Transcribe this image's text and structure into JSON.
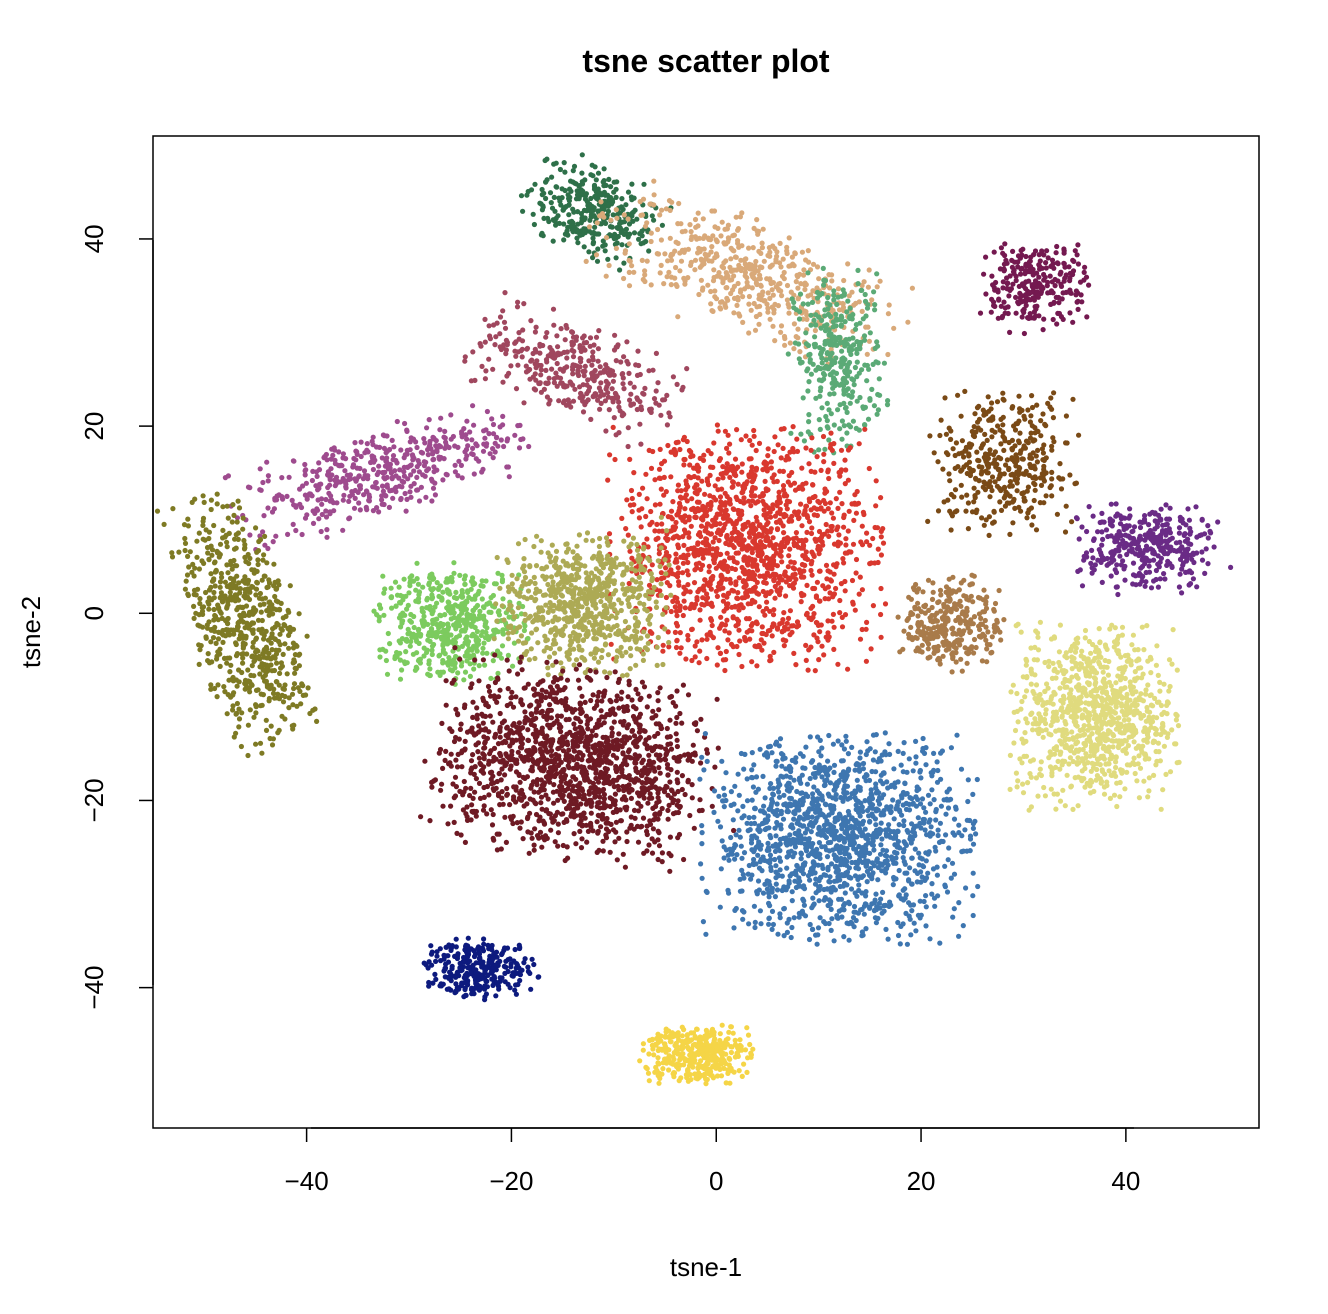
{
  "chart_data": {
    "type": "scatter",
    "title": "tsne scatter plot",
    "xlabel": "tsne-1",
    "ylabel": "tsne-2",
    "xlim": [
      -55,
      53
    ],
    "ylim": [
      -55,
      51
    ],
    "xticks": [
      -40,
      -20,
      0,
      20,
      40
    ],
    "yticks": [
      -40,
      -20,
      0,
      20,
      40
    ],
    "xtick_labels": [
      "−40",
      "−20",
      "0",
      "20",
      "40"
    ],
    "ytick_labels": [
      "−40",
      "−20",
      "0",
      "20",
      "40"
    ],
    "grid": false,
    "legend": "none",
    "clusters": [
      {
        "name": "dark-green",
        "color": "#2E7049",
        "n": 320,
        "cx": -12,
        "cy": 43,
        "sx": 3.2,
        "sy": 2.2,
        "angle": -28
      },
      {
        "name": "tan",
        "color": "#D9A979",
        "n": 520,
        "cx": 3,
        "cy": 36,
        "sx": 7.5,
        "sy": 2.8,
        "angle": -25
      },
      {
        "name": "sea-green",
        "color": "#5BAA76",
        "n": 320,
        "cx": 12,
        "cy": 27,
        "sx": 2.2,
        "sy": 4.5,
        "angle": 0
      },
      {
        "name": "plum",
        "color": "#741950",
        "n": 260,
        "cx": 31,
        "cy": 35,
        "sx": 2.6,
        "sy": 2.4,
        "angle": 0
      },
      {
        "name": "rose-brown",
        "color": "#A0475E",
        "n": 360,
        "cx": -14,
        "cy": 26,
        "sx": 5.0,
        "sy": 2.4,
        "angle": -25
      },
      {
        "name": "orchid",
        "color": "#9E4B8E",
        "n": 460,
        "cx": -33,
        "cy": 15,
        "sx": 7.0,
        "sy": 2.2,
        "angle": 20
      },
      {
        "name": "olive",
        "color": "#7E7A24",
        "n": 620,
        "cx": -46,
        "cy": -1,
        "sx": 2.5,
        "sy": 6.5,
        "angle": 15
      },
      {
        "name": "brown",
        "color": "#7A4A16",
        "n": 380,
        "cx": 28,
        "cy": 16,
        "sx": 3.5,
        "sy": 3.6,
        "angle": 0
      },
      {
        "name": "purple",
        "color": "#6A2B86",
        "n": 360,
        "cx": 42,
        "cy": 7,
        "sx": 3.2,
        "sy": 2.3,
        "angle": 0
      },
      {
        "name": "red",
        "color": "#D9382E",
        "n": 1400,
        "cx": 3,
        "cy": 7,
        "sx": 6.2,
        "sy": 6.0,
        "angle": 0
      },
      {
        "name": "light-green",
        "color": "#7CCB5E",
        "n": 520,
        "cx": -26,
        "cy": -1,
        "sx": 3.5,
        "sy": 3.0,
        "angle": 0
      },
      {
        "name": "khaki",
        "color": "#ADAA55",
        "n": 680,
        "cx": -13,
        "cy": 1,
        "sx": 4.0,
        "sy": 3.6,
        "angle": 0
      },
      {
        "name": "light-brown",
        "color": "#A97B4A",
        "n": 300,
        "cx": 23,
        "cy": -1,
        "sx": 2.4,
        "sy": 2.4,
        "angle": 0
      },
      {
        "name": "pale-yellow",
        "color": "#E0DB7E",
        "n": 900,
        "cx": 37,
        "cy": -11,
        "sx": 3.8,
        "sy": 4.6,
        "angle": 0
      },
      {
        "name": "maroon",
        "color": "#6E1A24",
        "n": 1400,
        "cx": -14,
        "cy": -16,
        "sx": 6.5,
        "sy": 4.8,
        "angle": -10
      },
      {
        "name": "steel-blue",
        "color": "#3E76B0",
        "n": 1400,
        "cx": 12,
        "cy": -24,
        "sx": 6.2,
        "sy": 5.2,
        "angle": 0
      },
      {
        "name": "navy",
        "color": "#0D1A7E",
        "n": 300,
        "cx": -23,
        "cy": -38,
        "sx": 2.6,
        "sy": 1.5,
        "angle": 0
      },
      {
        "name": "gold",
        "color": "#F5D547",
        "n": 360,
        "cx": -2,
        "cy": -47,
        "sx": 2.6,
        "sy": 1.6,
        "angle": 0
      }
    ]
  }
}
